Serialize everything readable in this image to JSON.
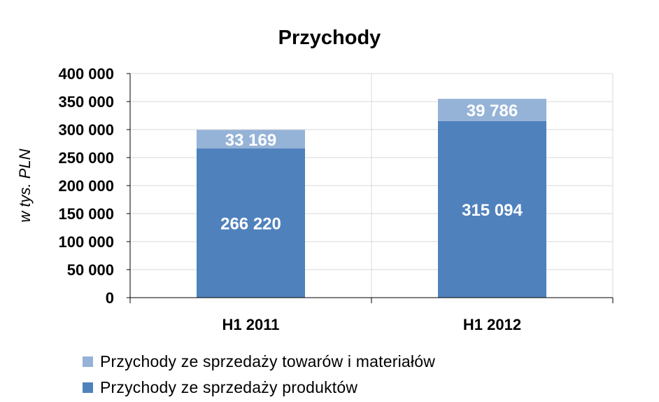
{
  "chart_data": {
    "type": "bar",
    "stacked": true,
    "title": "Przychody",
    "ylabel": "w tys. PLN",
    "xlabel": "",
    "categories": [
      "H1 2011",
      "H1 2012"
    ],
    "ylim": [
      0,
      400000
    ],
    "yticks": [
      0,
      50000,
      100000,
      150000,
      200000,
      250000,
      300000,
      350000,
      400000
    ],
    "ytick_labels": [
      "0",
      "50 000",
      "100 000",
      "150 000",
      "200 000",
      "250 000",
      "300 000",
      "350 000",
      "400 000"
    ],
    "grid": true,
    "legend_position": "bottom",
    "series": [
      {
        "name": "Przychody ze sprzedaży produktów",
        "values": [
          266220,
          315094
        ],
        "labels": [
          "266 220",
          "315 094"
        ],
        "color": "#4f81bd"
      },
      {
        "name": "Przychody ze sprzedaży towarów i materiałów",
        "values": [
          33169,
          39786
        ],
        "labels": [
          "33 169",
          "39 786"
        ],
        "color": "#95b3d7"
      }
    ]
  }
}
